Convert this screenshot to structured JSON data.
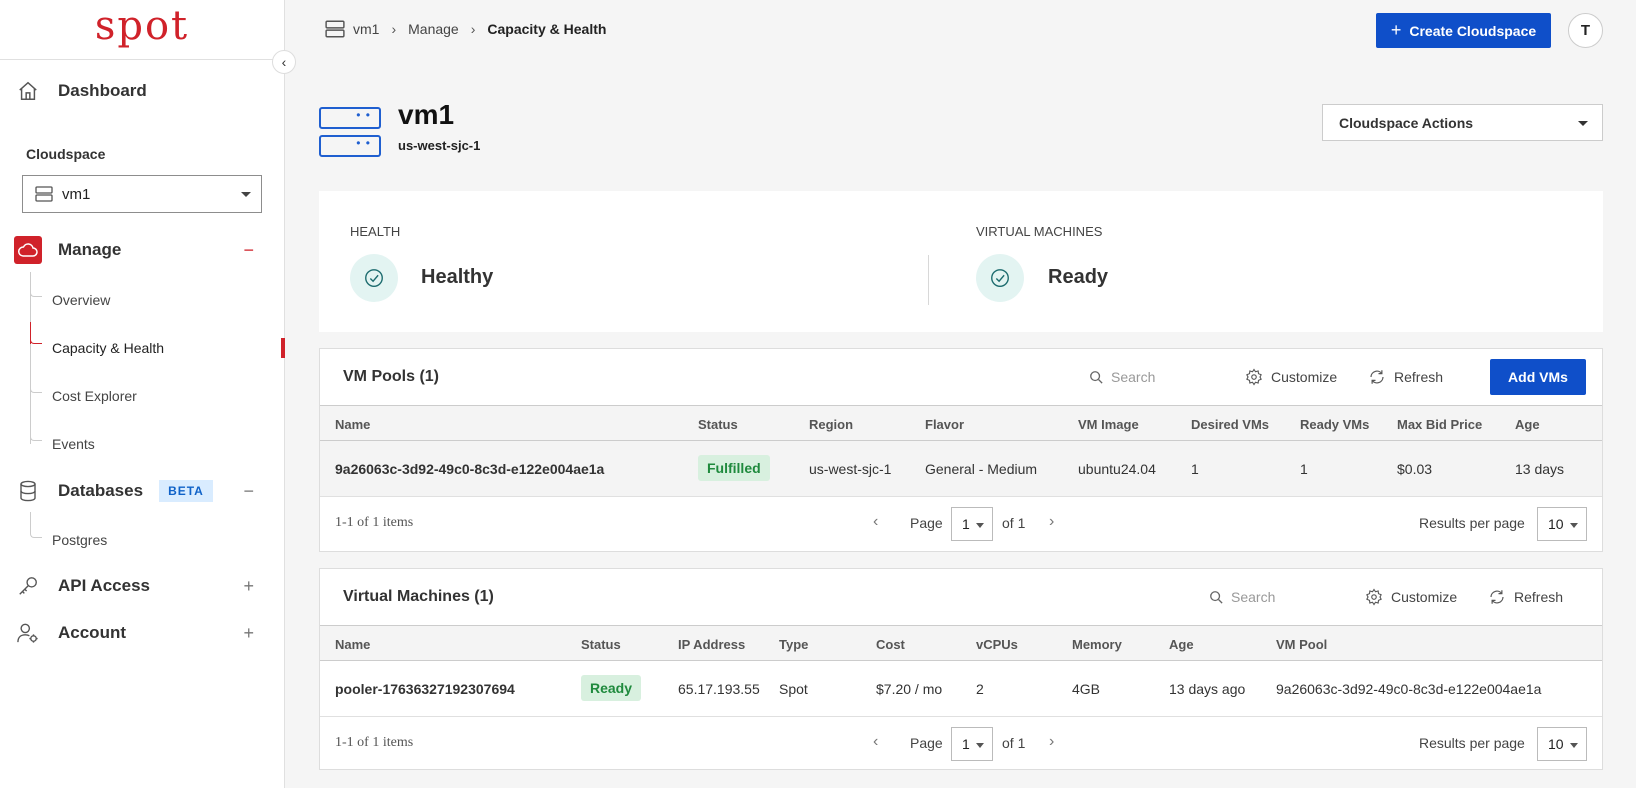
{
  "logo": "spot",
  "sidebar": {
    "dashboard": "Dashboard",
    "cloudspace_label": "Cloudspace",
    "cloudspace_value": "vm1",
    "manage": "Manage",
    "manage_ctrl": "−",
    "manage_items": [
      "Overview",
      "Capacity & Health",
      "Cost Explorer",
      "Events"
    ],
    "databases": "Databases",
    "databases_badge": "BETA",
    "databases_ctrl": "−",
    "database_items": [
      "Postgres"
    ],
    "api_access": "API Access",
    "api_ctrl": "+",
    "account": "Account",
    "account_ctrl": "+"
  },
  "breadcrumb": [
    "vm1",
    "Manage",
    "Capacity & Health"
  ],
  "header": {
    "create_label": "Create Cloudspace",
    "avatar_initial": "T"
  },
  "title": {
    "name": "vm1",
    "region": "us-west-sjc-1",
    "actions_label": "Cloudspace Actions"
  },
  "health": {
    "health_label": "HEALTH",
    "health_value": "Healthy",
    "vm_label": "VIRTUAL MACHINES",
    "vm_value": "Ready"
  },
  "vm_pools": {
    "title": "VM Pools (1)",
    "search_placeholder": "Search",
    "customize": "Customize",
    "refresh": "Refresh",
    "add_label": "Add VMs",
    "columns": [
      "Name",
      "Status",
      "Region",
      "Flavor",
      "VM Image",
      "Desired VMs",
      "Ready VMs",
      "Max Bid Price",
      "Age"
    ],
    "rows": [
      {
        "name": "9a26063c-3d92-49c0-8c3d-e122e004ae1a",
        "status": "Fulfilled",
        "region": "us-west-sjc-1",
        "flavor": "General - Medium",
        "image": "ubuntu24.04",
        "desired": "1",
        "ready": "1",
        "bid": "$0.03",
        "age": "13 days"
      }
    ],
    "pager": {
      "items": "1-1 of 1 items",
      "page_label": "Page",
      "page": "1",
      "of": "of 1",
      "rpp_label": "Results per page",
      "rpp": "10"
    }
  },
  "vms": {
    "title": "Virtual Machines (1)",
    "search_placeholder": "Search",
    "customize": "Customize",
    "refresh": "Refresh",
    "columns": [
      "Name",
      "Status",
      "IP Address",
      "Type",
      "Cost",
      "vCPUs",
      "Memory",
      "Age",
      "VM Pool"
    ],
    "rows": [
      {
        "name": "pooler-17636327192307694",
        "status": "Ready",
        "ip": "65.17.193.55",
        "type": "Spot",
        "cost": "$7.20 / mo",
        "vcpus": "2",
        "memory": "4GB",
        "age": "13 days ago",
        "pool": "9a26063c-3d92-49c0-8c3d-e122e004ae1a"
      }
    ],
    "pager": {
      "items": "1-1 of 1 items",
      "page_label": "Page",
      "page": "1",
      "of": "of 1",
      "rpp_label": "Results per page",
      "rpp": "10"
    }
  },
  "colors": {
    "brand_red": "#d0222a",
    "primary_blue": "#0f4fc9",
    "success_green": "#1f8a3d",
    "success_bg": "#d8f0df"
  }
}
